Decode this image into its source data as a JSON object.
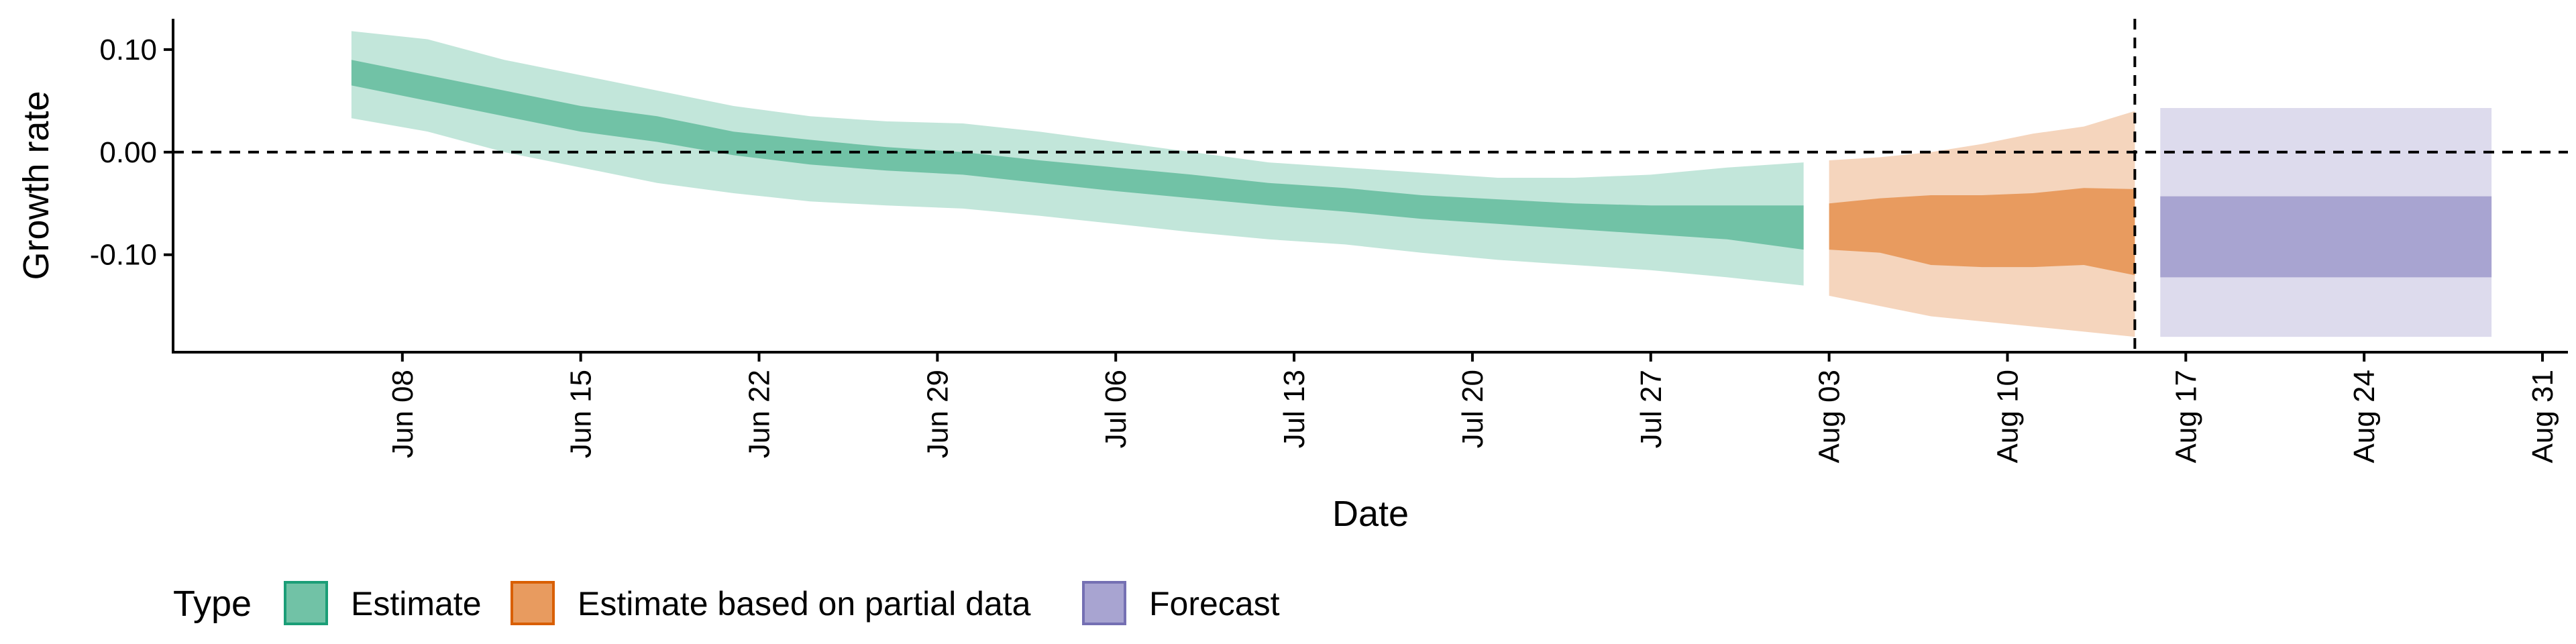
{
  "chart_data": {
    "type": "area",
    "title": "",
    "xlabel": "Date",
    "ylabel": "Growth rate",
    "ylim": [
      -0.195,
      0.13
    ],
    "xlim": [
      "2020-05-30",
      "2020-09-01"
    ],
    "y_ticks": [
      {
        "value": 0.1,
        "label": "0.10"
      },
      {
        "value": 0.0,
        "label": "0.00"
      },
      {
        "value": -0.1,
        "label": "-0.10"
      }
    ],
    "x_ticks": [
      {
        "date": "2020-06-08",
        "label": "Jun 08"
      },
      {
        "date": "2020-06-15",
        "label": "Jun 15"
      },
      {
        "date": "2020-06-22",
        "label": "Jun 22"
      },
      {
        "date": "2020-06-29",
        "label": "Jun 29"
      },
      {
        "date": "2020-07-06",
        "label": "Jul 06"
      },
      {
        "date": "2020-07-13",
        "label": "Jul 13"
      },
      {
        "date": "2020-07-20",
        "label": "Jul 20"
      },
      {
        "date": "2020-07-27",
        "label": "Jul 27"
      },
      {
        "date": "2020-08-03",
        "label": "Aug 03"
      },
      {
        "date": "2020-08-10",
        "label": "Aug 10"
      },
      {
        "date": "2020-08-17",
        "label": "Aug 17"
      },
      {
        "date": "2020-08-24",
        "label": "Aug 24"
      },
      {
        "date": "2020-08-31",
        "label": "Aug 31"
      }
    ],
    "hlines": [
      {
        "y": 0.0,
        "style": "dashed"
      }
    ],
    "vlines": [
      {
        "date": "2020-08-15",
        "style": "dashed"
      }
    ],
    "legend": {
      "title": "Type",
      "placement": "bottom-left",
      "entries": [
        "Estimate",
        "Estimate based on partial data",
        "Forecast"
      ]
    },
    "series": [
      {
        "name": "Estimate",
        "color": "#1b9e77",
        "outer_color": "#c2e6da",
        "inner_color": "#71c2a6",
        "x": [
          "2020-06-06",
          "2020-06-09",
          "2020-06-12",
          "2020-06-15",
          "2020-06-18",
          "2020-06-21",
          "2020-06-24",
          "2020-06-27",
          "2020-06-30",
          "2020-07-03",
          "2020-07-06",
          "2020-07-09",
          "2020-07-12",
          "2020-07-15",
          "2020-07-18",
          "2020-07-21",
          "2020-07-24",
          "2020-07-27",
          "2020-07-30",
          "2020-08-02"
        ],
        "outer_upper": [
          0.118,
          0.11,
          0.09,
          0.075,
          0.06,
          0.045,
          0.035,
          0.03,
          0.028,
          0.02,
          0.01,
          0.0,
          -0.01,
          -0.015,
          -0.02,
          -0.025,
          -0.025,
          -0.022,
          -0.015,
          -0.01
        ],
        "inner_upper": [
          0.09,
          0.075,
          0.06,
          0.045,
          0.035,
          0.02,
          0.012,
          0.005,
          0.0,
          -0.008,
          -0.015,
          -0.022,
          -0.03,
          -0.035,
          -0.042,
          -0.046,
          -0.05,
          -0.052,
          -0.052,
          -0.052
        ],
        "inner_lower": [
          0.065,
          0.05,
          0.035,
          0.02,
          0.01,
          -0.003,
          -0.012,
          -0.018,
          -0.022,
          -0.03,
          -0.038,
          -0.045,
          -0.052,
          -0.058,
          -0.065,
          -0.07,
          -0.075,
          -0.08,
          -0.085,
          -0.095
        ],
        "outer_lower": [
          0.033,
          0.02,
          0.0,
          -0.015,
          -0.03,
          -0.04,
          -0.048,
          -0.052,
          -0.055,
          -0.062,
          -0.07,
          -0.078,
          -0.085,
          -0.09,
          -0.098,
          -0.105,
          -0.11,
          -0.115,
          -0.122,
          -0.13
        ]
      },
      {
        "name": "Estimate based on partial data",
        "color": "#d95f02",
        "outer_color": "#f5d5bd",
        "inner_color": "#e89b5f",
        "x": [
          "2020-08-03",
          "2020-08-05",
          "2020-08-07",
          "2020-08-09",
          "2020-08-11",
          "2020-08-13",
          "2020-08-15"
        ],
        "outer_upper": [
          -0.008,
          -0.005,
          0.0,
          0.008,
          0.018,
          0.025,
          0.04
        ],
        "inner_upper": [
          -0.05,
          -0.045,
          -0.042,
          -0.042,
          -0.04,
          -0.035,
          -0.036
        ],
        "inner_lower": [
          -0.095,
          -0.098,
          -0.11,
          -0.112,
          -0.112,
          -0.11,
          -0.12
        ],
        "outer_lower": [
          -0.14,
          -0.15,
          -0.16,
          -0.165,
          -0.17,
          -0.175,
          -0.18
        ]
      },
      {
        "name": "Forecast",
        "color": "#7570b3",
        "outer_color": "#dddbed",
        "inner_color": "#a8a4d1",
        "x": [
          "2020-08-16",
          "2020-08-29"
        ],
        "outer_upper": [
          0.043,
          0.043
        ],
        "inner_upper": [
          -0.043,
          -0.043
        ],
        "inner_lower": [
          -0.122,
          -0.122
        ],
        "outer_lower": [
          -0.18,
          -0.18
        ]
      }
    ]
  }
}
